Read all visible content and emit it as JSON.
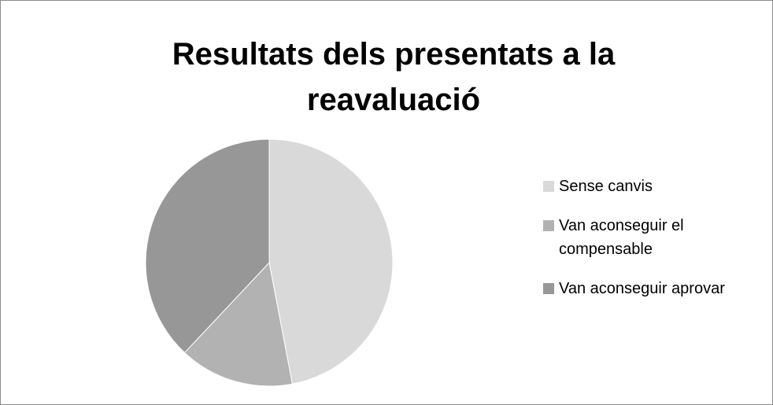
{
  "chart_data": {
    "type": "pie",
    "title": "Resultats dels presentats a la reavaluació",
    "categories": [
      "Sense canvis",
      "Van aconseguir el compensable",
      "Van aconseguir aprovar"
    ],
    "values": [
      47,
      15,
      38
    ],
    "colors": [
      "#d9d9d9",
      "#b2b2b2",
      "#979797"
    ],
    "legend": "right"
  }
}
